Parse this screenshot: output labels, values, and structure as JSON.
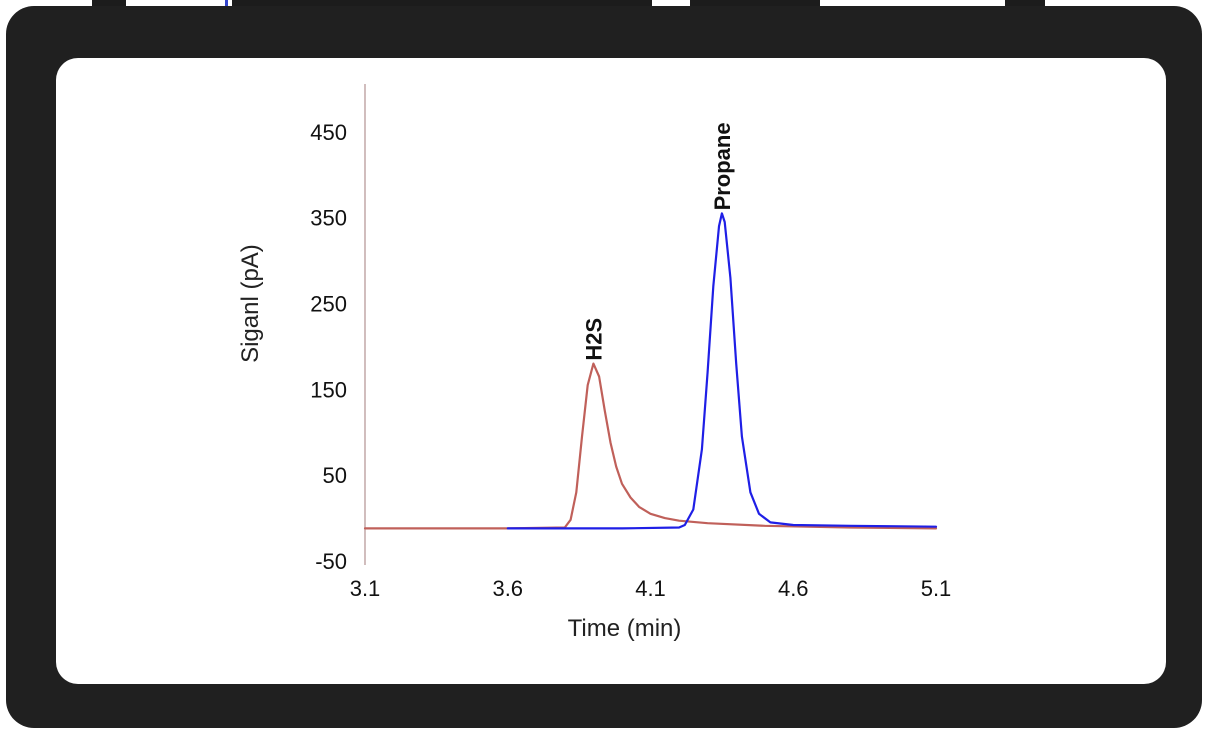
{
  "colors": {
    "frame": "#202020",
    "panel": "#ffffff",
    "axis": "#b89a9a",
    "h2s_trace": "#c0605a",
    "propane_trace": "#1f1fe6"
  },
  "chart_data": {
    "type": "line",
    "xlabel": "Time (min)",
    "ylabel": "Siganl (pA)",
    "xlim": [
      3.1,
      5.1
    ],
    "ylim": [
      -50,
      500
    ],
    "xticks": [
      3.1,
      3.6,
      4.1,
      4.6,
      5.1
    ],
    "yticks": [
      -50,
      50,
      150,
      250,
      350,
      450
    ],
    "grid": false,
    "legend": "none",
    "series": [
      {
        "color": "#c0605a",
        "x": [
          3.1,
          3.6,
          3.8,
          3.82,
          3.84,
          3.86,
          3.88,
          3.9,
          3.92,
          3.94,
          3.96,
          3.98,
          4.0,
          4.03,
          4.06,
          4.1,
          4.15,
          4.2,
          4.3,
          4.5,
          4.8,
          5.1
        ],
        "y": [
          -12,
          -12,
          -11,
          -2,
          30,
          95,
          155,
          180,
          165,
          125,
          88,
          60,
          40,
          24,
          13,
          5,
          0,
          -3,
          -6,
          -9,
          -11,
          -12
        ]
      },
      {
        "color": "#1f1fe6",
        "x": [
          3.6,
          4.0,
          4.2,
          4.22,
          4.25,
          4.28,
          4.3,
          4.32,
          4.34,
          4.35,
          4.36,
          4.38,
          4.4,
          4.42,
          4.45,
          4.48,
          4.52,
          4.6,
          4.8,
          5.1
        ],
        "y": [
          -12,
          -12,
          -11,
          -8,
          10,
          80,
          170,
          270,
          340,
          355,
          345,
          280,
          180,
          95,
          30,
          5,
          -5,
          -8,
          -9,
          -10
        ]
      }
    ],
    "annotations": [
      {
        "text": "H2S",
        "x": 3.9,
        "y": 180
      },
      {
        "text": "Propane",
        "x": 4.35,
        "y": 355
      }
    ]
  }
}
